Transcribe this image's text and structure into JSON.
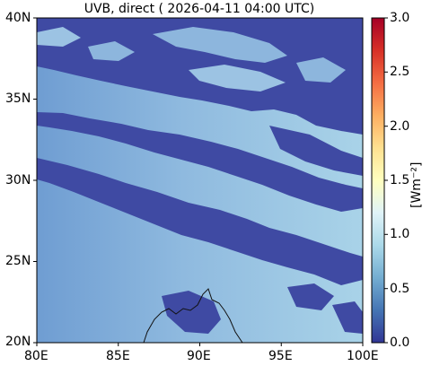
{
  "title": "UVB, direct ( 2026-04-11 04:00 UTC)",
  "map": {
    "lon_range": [
      80,
      100
    ],
    "lat_range": [
      20,
      40
    ],
    "x_ticks": [
      "80E",
      "85E",
      "90E",
      "95E",
      "100E"
    ],
    "y_ticks": [
      "20N",
      "25N",
      "30N",
      "35N",
      "40N"
    ]
  },
  "colorbar": {
    "range": [
      0.0,
      3.0
    ],
    "ticks": [
      "0.0",
      "0.5",
      "1.0",
      "1.5",
      "2.0",
      "2.5",
      "3.0"
    ],
    "unit_label": "[Wm⁻²]",
    "colormap": "RdYlBu_r"
  },
  "colors": {
    "cloud_dark": "#3f4aa3",
    "clear_base": "#7aa7d6",
    "clear_light": "#a9d3e8"
  }
}
